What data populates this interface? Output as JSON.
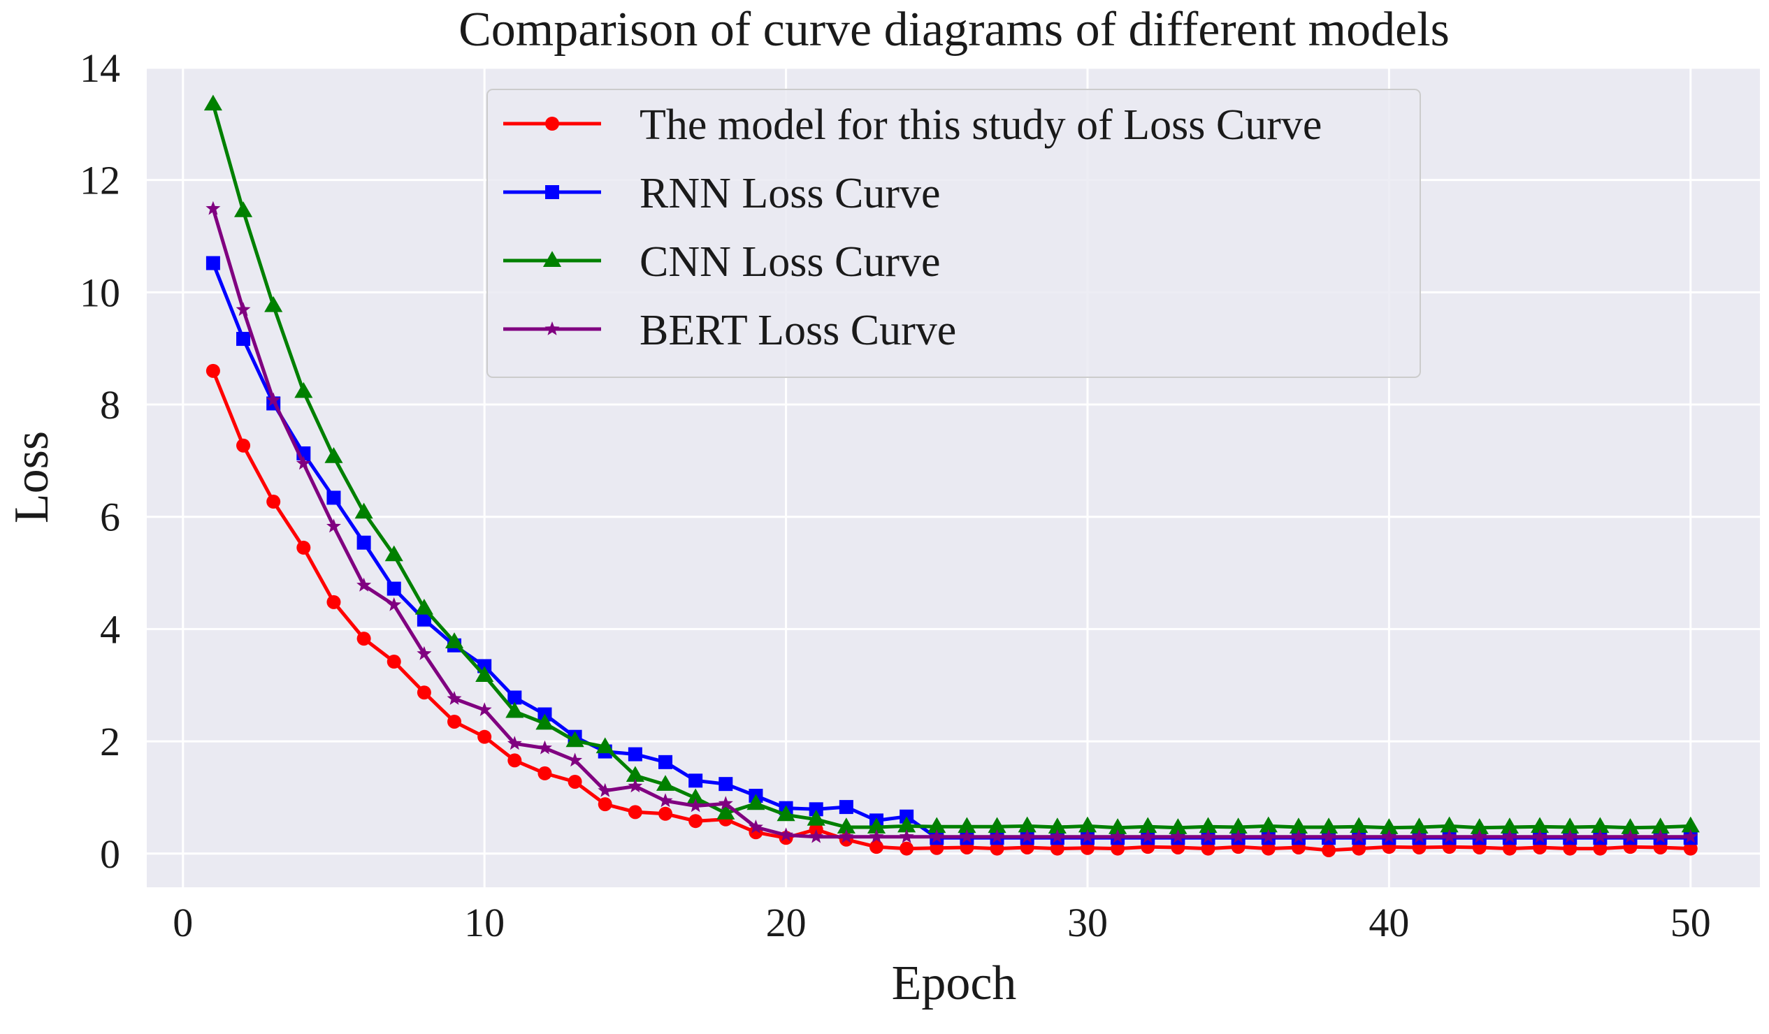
{
  "chart_data": {
    "type": "line",
    "title": "Comparison of curve diagrams of different models",
    "xlabel": "Epoch",
    "ylabel": "Loss",
    "xlim": [
      -1.2,
      52.3
    ],
    "ylim": [
      -0.6,
      14
    ],
    "xticks": [
      0,
      10,
      20,
      30,
      40,
      50
    ],
    "yticks": [
      0,
      2,
      4,
      6,
      8,
      10,
      12,
      14
    ],
    "grid": true,
    "background": "#eaeaf2",
    "legend_position": "top-center",
    "x": [
      1,
      2,
      3,
      4,
      5,
      6,
      7,
      8,
      9,
      10,
      11,
      12,
      13,
      14,
      15,
      16,
      17,
      18,
      19,
      20,
      21,
      22,
      23,
      24,
      25,
      26,
      27,
      28,
      29,
      30,
      31,
      32,
      33,
      34,
      35,
      36,
      37,
      38,
      39,
      40,
      41,
      42,
      43,
      44,
      45,
      46,
      47,
      48,
      49,
      50
    ],
    "series": [
      {
        "name": "The model for this study of Loss Curve",
        "color": "#ff0000",
        "marker": "circle",
        "values": [
          8.6,
          7.27,
          6.27,
          5.45,
          4.48,
          3.83,
          3.42,
          2.87,
          2.35,
          2.08,
          1.66,
          1.43,
          1.28,
          0.88,
          0.74,
          0.71,
          0.58,
          0.61,
          0.38,
          0.28,
          0.43,
          0.25,
          0.12,
          0.09,
          0.1,
          0.11,
          0.09,
          0.11,
          0.09,
          0.1,
          0.09,
          0.12,
          0.11,
          0.09,
          0.12,
          0.09,
          0.11,
          0.06,
          0.09,
          0.12,
          0.11,
          0.12,
          0.11,
          0.09,
          0.11,
          0.09,
          0.09,
          0.12,
          0.11,
          0.09
        ]
      },
      {
        "name": "RNN Loss Curve",
        "color": "#0000ff",
        "marker": "square",
        "values": [
          10.52,
          9.17,
          8.02,
          7.13,
          6.34,
          5.54,
          4.72,
          4.17,
          3.71,
          3.34,
          2.78,
          2.48,
          2.08,
          1.82,
          1.77,
          1.63,
          1.3,
          1.24,
          1.03,
          0.81,
          0.79,
          0.83,
          0.59,
          0.66,
          0.28,
          0.28,
          0.28,
          0.28,
          0.28,
          0.28,
          0.28,
          0.28,
          0.28,
          0.28,
          0.28,
          0.28,
          0.28,
          0.28,
          0.28,
          0.28,
          0.28,
          0.28,
          0.28,
          0.28,
          0.28,
          0.28,
          0.28,
          0.28,
          0.28,
          0.28
        ]
      },
      {
        "name": "CNN Loss Curve",
        "color": "#008000",
        "marker": "triangle",
        "values": [
          13.35,
          11.45,
          9.76,
          8.23,
          7.07,
          6.08,
          5.32,
          4.37,
          3.77,
          3.17,
          2.53,
          2.32,
          2.01,
          1.9,
          1.39,
          1.23,
          0.99,
          0.72,
          0.89,
          0.69,
          0.61,
          0.47,
          0.47,
          0.49,
          0.48,
          0.48,
          0.48,
          0.49,
          0.47,
          0.49,
          0.46,
          0.48,
          0.46,
          0.48,
          0.47,
          0.49,
          0.47,
          0.47,
          0.48,
          0.46,
          0.47,
          0.49,
          0.46,
          0.47,
          0.48,
          0.47,
          0.48,
          0.46,
          0.47,
          0.49
        ]
      },
      {
        "name": "BERT Loss Curve",
        "color": "#800080",
        "marker": "star",
        "values": [
          11.49,
          9.69,
          8.08,
          6.95,
          5.83,
          4.78,
          4.43,
          3.56,
          2.76,
          2.56,
          1.96,
          1.88,
          1.66,
          1.12,
          1.2,
          0.94,
          0.85,
          0.89,
          0.47,
          0.33,
          0.3,
          0.3,
          0.3,
          0.3,
          0.3,
          0.3,
          0.3,
          0.3,
          0.3,
          0.3,
          0.3,
          0.3,
          0.3,
          0.3,
          0.3,
          0.3,
          0.3,
          0.3,
          0.3,
          0.3,
          0.3,
          0.3,
          0.3,
          0.3,
          0.3,
          0.3,
          0.3,
          0.3,
          0.3,
          0.3
        ]
      }
    ]
  }
}
